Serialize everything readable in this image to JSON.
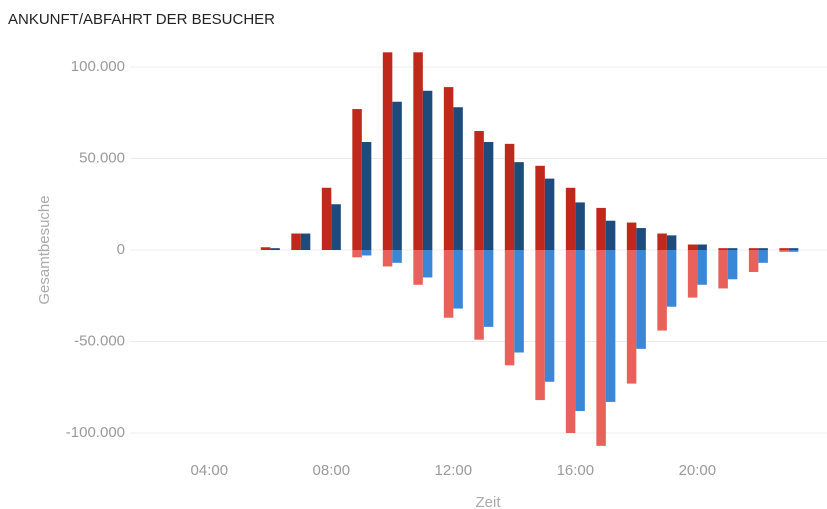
{
  "chart_data": {
    "type": "bar",
    "title": "ANKUNFT/ABFAHRT DER BESUCHER",
    "xlabel": "Zeit",
    "ylabel": "Gesamtbesuche",
    "x": [
      6,
      7,
      8,
      9,
      10,
      11,
      12,
      13,
      14,
      15,
      16,
      17,
      18,
      19,
      20,
      21,
      22,
      23
    ],
    "series": [
      {
        "color": "#c0281c",
        "values": [
          1500,
          9000,
          34000,
          77000,
          108000,
          108000,
          89000,
          65000,
          58000,
          46000,
          34000,
          23000,
          15000,
          9000,
          3000,
          1000,
          1000,
          1000
        ]
      },
      {
        "color": "#1d4c7c",
        "values": [
          1000,
          9000,
          25000,
          59000,
          81000,
          87000,
          78000,
          59000,
          48000,
          39000,
          26000,
          16000,
          12000,
          8000,
          3000,
          1000,
          1000,
          1000
        ]
      },
      {
        "color": "#e8615a",
        "values": [
          0,
          0,
          0,
          -4000,
          -9000,
          -19000,
          -37000,
          -49000,
          -63000,
          -82000,
          -100000,
          -107000,
          -73000,
          -44000,
          -26000,
          -21000,
          -12000,
          -1000
        ]
      },
      {
        "color": "#3a87d8",
        "values": [
          0,
          0,
          0,
          -3000,
          -7000,
          -15000,
          -32000,
          -42000,
          -56000,
          -72000,
          -88000,
          -83000,
          -54000,
          -31000,
          -19000,
          -16000,
          -7000,
          -1000
        ]
      }
    ],
    "xlim": [
      1.4,
      24.25
    ],
    "xticks": [
      {
        "value": 4,
        "label": "04:00"
      },
      {
        "value": 8,
        "label": "08:00"
      },
      {
        "value": 12,
        "label": "12:00"
      },
      {
        "value": 16,
        "label": "16:00"
      },
      {
        "value": 20,
        "label": "20:00"
      }
    ],
    "ylim": [
      -112000,
      112000
    ],
    "yticks": [
      {
        "value": 100000,
        "label": "100.000"
      },
      {
        "value": 50000,
        "label": "50.000"
      },
      0,
      {
        "value": -50000,
        "label": "-50.000"
      },
      {
        "value": -100000,
        "label": "-100.000"
      }
    ],
    "grid": true
  }
}
